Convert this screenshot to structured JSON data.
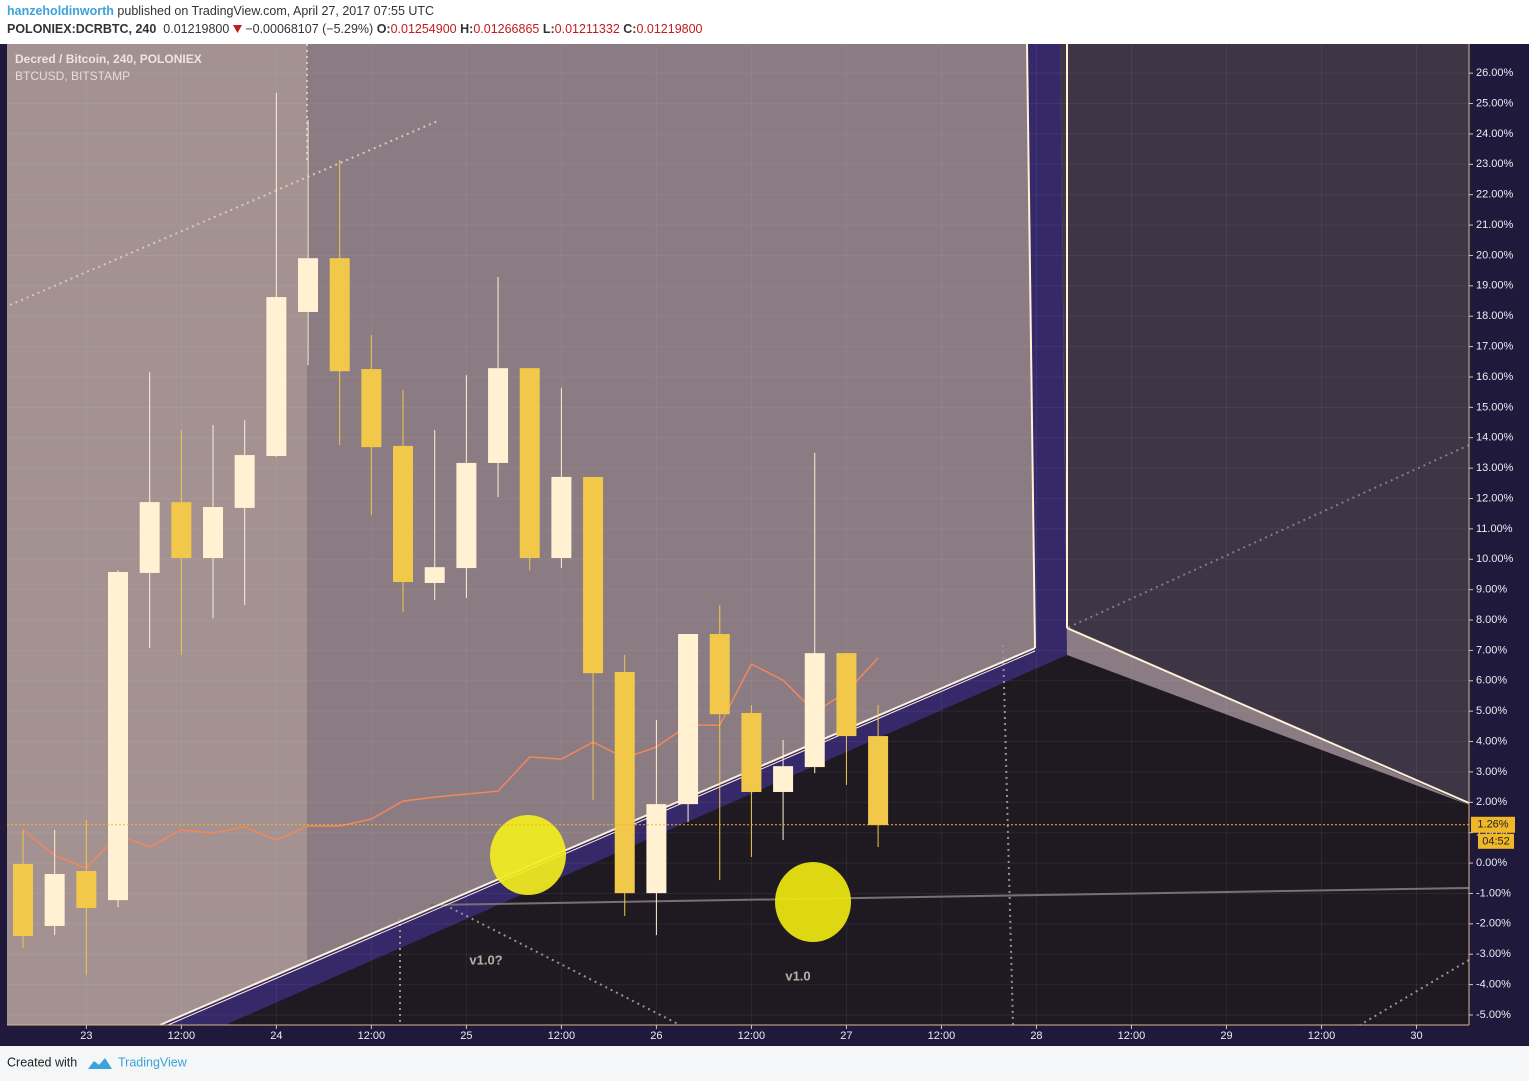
{
  "header": {
    "author": "hanzeholdinworth",
    "published": "published on TradingView.com, April 27, 2017 07:55 UTC",
    "symbol": "POLONIEX:DCRBTC, 240",
    "price": "0.01219800",
    "change": "−0.00068107 (−5.29%)",
    "ohlc": [
      {
        "key": "O:",
        "value": "0.01254900"
      },
      {
        "key": "H:",
        "value": "0.01266865"
      },
      {
        "key": "L:",
        "value": "0.01211332"
      },
      {
        "key": "C:",
        "value": "0.01219800"
      }
    ]
  },
  "chart_data": {
    "type": "candlestick",
    "categories": [
      null,
      null,
      "23",
      null,
      null,
      "12:00",
      null,
      null,
      "24",
      null,
      null,
      "12:00",
      null,
      null,
      "25",
      null,
      null,
      "12:00",
      null,
      null,
      "26",
      null,
      null,
      "12:00",
      null,
      null,
      "27",
      null,
      null,
      "12:00",
      null,
      null,
      "28",
      null,
      null,
      "12:00",
      null,
      null,
      "29",
      null,
      null,
      "12:00",
      null,
      null,
      "30",
      null
    ],
    "series": [
      {
        "name": "Decred / Bitcoin, 240, POLONIEX",
        "type": "candlestick",
        "up_color": "#fff1d2",
        "down_color": "#f2c84b",
        "open": [
          -0.03,
          -2.07,
          -0.26,
          -1.22,
          9.55,
          11.88,
          10.04,
          11.69,
          13.4,
          18.14,
          19.91,
          16.26,
          13.73,
          9.22,
          9.71,
          13.17,
          16.29,
          10.04,
          12.71,
          6.29,
          -0.99,
          1.94,
          7.54,
          4.94,
          2.34,
          3.16,
          6.91,
          4.18,
          null,
          null,
          null,
          null,
          null,
          null,
          null,
          null,
          null,
          null,
          null,
          null,
          null,
          null,
          null,
          null,
          null,
          null
        ],
        "high": [
          1.09,
          1.09,
          1.42,
          9.64,
          16.16,
          14.25,
          14.42,
          14.58,
          25.35,
          24.46,
          23.14,
          17.38,
          15.57,
          14.25,
          16.06,
          19.29,
          16.29,
          15.64,
          12.71,
          6.85,
          4.71,
          7.54,
          8.49,
          5.2,
          4.05,
          13.5,
          6.91,
          5.2,
          null,
          null,
          null,
          null,
          null,
          null,
          null,
          null,
          null,
          null,
          null,
          null,
          null,
          null,
          null,
          null,
          null,
          null
        ],
        "low": [
          -2.8,
          -2.37,
          -3.69,
          -1.45,
          7.08,
          6.85,
          8.06,
          8.49,
          13.37,
          16.39,
          13.76,
          11.45,
          8.26,
          8.66,
          8.72,
          12.05,
          9.64,
          9.71,
          2.07,
          -1.74,
          -2.37,
          1.35,
          -0.56,
          0.2,
          0.76,
          2.96,
          2.57,
          0.53,
          null,
          null,
          null,
          null,
          null,
          null,
          null,
          null,
          null,
          null,
          null,
          null,
          null,
          null,
          null,
          null,
          null,
          null
        ],
        "close": [
          -2.4,
          -0.36,
          -1.48,
          9.58,
          11.88,
          10.04,
          11.72,
          13.43,
          18.63,
          19.91,
          16.19,
          13.69,
          9.25,
          9.74,
          13.17,
          16.29,
          10.04,
          12.71,
          6.25,
          -0.99,
          1.94,
          7.54,
          4.9,
          2.34,
          3.19,
          6.91,
          4.18,
          1.25,
          null,
          null,
          null,
          null,
          null,
          null,
          null,
          null,
          null,
          null,
          null,
          null,
          null,
          null,
          null,
          null,
          null,
          null
        ]
      },
      {
        "name": "BTCUSD, BITSTAMP",
        "type": "line",
        "color": "#f3875a",
        "values": [
          1.09,
          0.26,
          -0.16,
          0.92,
          0.53,
          1.09,
          0.99,
          1.19,
          0.76,
          1.22,
          1.22,
          1.45,
          2.04,
          2.17,
          2.27,
          2.37,
          3.49,
          3.42,
          3.98,
          3.46,
          3.82,
          4.54,
          4.54,
          6.55,
          6.02,
          4.97,
          5.63,
          6.75,
          null,
          null,
          null,
          null,
          null,
          null,
          null,
          null,
          null,
          null,
          null,
          null,
          null,
          null,
          null,
          null,
          null,
          null
        ]
      }
    ],
    "ylim": [
      -5.33,
      26.96
    ],
    "yticks": [
      {
        "value": -5,
        "label": "-5.00%"
      },
      {
        "value": -4,
        "label": "-4.00%"
      },
      {
        "value": -3,
        "label": "-3.00%"
      },
      {
        "value": -2,
        "label": "-2.00%"
      },
      {
        "value": -1,
        "label": "-1.00%"
      },
      {
        "value": 0,
        "label": "0.00%"
      },
      {
        "value": 1,
        "label": "1.00%"
      },
      {
        "value": 2,
        "label": "2.00%"
      },
      {
        "value": 3,
        "label": "3.00%"
      },
      {
        "value": 4,
        "label": "4.00%"
      },
      {
        "value": 5,
        "label": "5.00%"
      },
      {
        "value": 6,
        "label": "6.00%"
      },
      {
        "value": 7,
        "label": "7.00%"
      },
      {
        "value": 8,
        "label": "8.00%"
      },
      {
        "value": 9,
        "label": "9.00%"
      },
      {
        "value": 10,
        "label": "10.00%"
      },
      {
        "value": 11,
        "label": "11.00%"
      },
      {
        "value": 12,
        "label": "12.00%"
      },
      {
        "value": 13,
        "label": "13.00%"
      },
      {
        "value": 14,
        "label": "14.00%"
      },
      {
        "value": 15,
        "label": "15.00%"
      },
      {
        "value": 16,
        "label": "16.00%"
      },
      {
        "value": 17,
        "label": "17.00%"
      },
      {
        "value": 18,
        "label": "18.00%"
      },
      {
        "value": 19,
        "label": "19.00%"
      },
      {
        "value": 20,
        "label": "20.00%"
      },
      {
        "value": 21,
        "label": "21.00%"
      },
      {
        "value": 22,
        "label": "22.00%"
      },
      {
        "value": 23,
        "label": "23.00%"
      },
      {
        "value": 24,
        "label": "24.00%"
      },
      {
        "value": 25,
        "label": "25.00%"
      },
      {
        "value": 26,
        "label": "26.00%"
      }
    ],
    "grid": true,
    "price_line": {
      "value": 1.26,
      "label": "1.26%",
      "countdown": "04:52",
      "color": "#f0b828"
    },
    "annotations": [
      "v1.0?",
      "v1.0"
    ]
  },
  "footer": {
    "created": "Created with",
    "brand": "TradingView"
  }
}
